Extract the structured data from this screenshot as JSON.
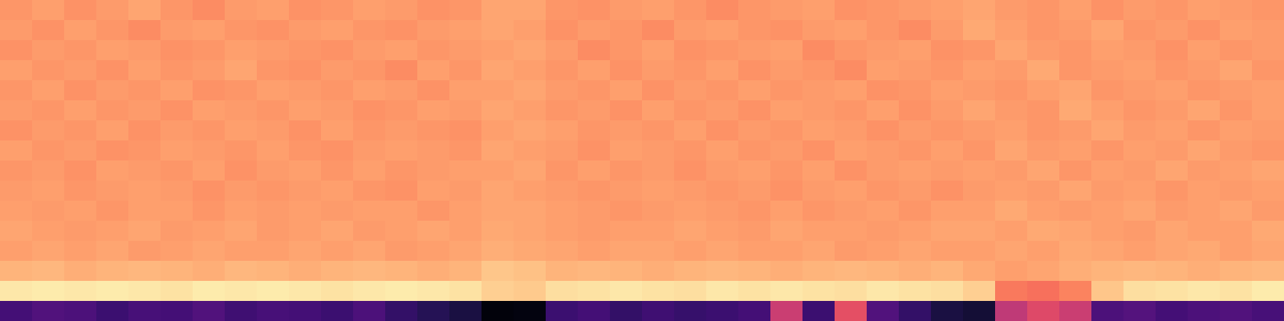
{
  "chart_data": {
    "type": "heatmap",
    "tick_labels": false,
    "color": "magma",
    "color_range": [
      0,
      1
    ],
    "cells": [
      [
        0.78,
        0.8,
        0.77,
        0.79,
        0.81,
        0.78,
        0.76,
        0.79,
        0.8,
        0.77,
        0.78,
        0.8,
        0.79,
        0.77,
        0.78,
        0.81,
        0.81,
        0.78,
        0.77,
        0.79,
        0.8,
        0.78,
        0.76,
        0.78,
        0.79,
        0.8,
        0.77,
        0.78,
        0.79,
        0.8,
        0.81,
        0.79,
        0.78,
        0.8,
        0.77,
        0.79,
        0.78,
        0.8,
        0.79,
        0.78
      ],
      [
        0.79,
        0.77,
        0.8,
        0.78,
        0.76,
        0.79,
        0.8,
        0.78,
        0.77,
        0.79,
        0.8,
        0.78,
        0.77,
        0.79,
        0.8,
        0.81,
        0.8,
        0.77,
        0.79,
        0.78,
        0.76,
        0.79,
        0.8,
        0.78,
        0.77,
        0.79,
        0.8,
        0.78,
        0.76,
        0.79,
        0.82,
        0.8,
        0.78,
        0.79,
        0.81,
        0.78,
        0.79,
        0.77,
        0.8,
        0.79
      ],
      [
        0.77,
        0.79,
        0.78,
        0.8,
        0.79,
        0.77,
        0.78,
        0.8,
        0.79,
        0.78,
        0.77,
        0.79,
        0.8,
        0.78,
        0.79,
        0.8,
        0.81,
        0.79,
        0.76,
        0.78,
        0.8,
        0.77,
        0.78,
        0.79,
        0.8,
        0.76,
        0.78,
        0.79,
        0.8,
        0.77,
        0.78,
        0.81,
        0.79,
        0.78,
        0.8,
        0.79,
        0.77,
        0.8,
        0.78,
        0.79
      ],
      [
        0.8,
        0.78,
        0.79,
        0.77,
        0.8,
        0.78,
        0.79,
        0.81,
        0.78,
        0.77,
        0.79,
        0.78,
        0.76,
        0.8,
        0.78,
        0.81,
        0.8,
        0.78,
        0.8,
        0.77,
        0.79,
        0.78,
        0.8,
        0.77,
        0.79,
        0.78,
        0.76,
        0.8,
        0.79,
        0.78,
        0.8,
        0.79,
        0.82,
        0.78,
        0.79,
        0.8,
        0.78,
        0.79,
        0.81,
        0.78
      ],
      [
        0.78,
        0.8,
        0.77,
        0.79,
        0.78,
        0.8,
        0.77,
        0.78,
        0.8,
        0.79,
        0.78,
        0.8,
        0.79,
        0.77,
        0.8,
        0.8,
        0.81,
        0.79,
        0.78,
        0.8,
        0.77,
        0.79,
        0.78,
        0.8,
        0.78,
        0.79,
        0.8,
        0.77,
        0.78,
        0.8,
        0.79,
        0.78,
        0.8,
        0.81,
        0.78,
        0.79,
        0.8,
        0.78,
        0.79,
        0.8
      ],
      [
        0.79,
        0.78,
        0.8,
        0.78,
        0.79,
        0.77,
        0.8,
        0.79,
        0.78,
        0.8,
        0.79,
        0.77,
        0.78,
        0.8,
        0.79,
        0.81,
        0.8,
        0.78,
        0.79,
        0.77,
        0.8,
        0.78,
        0.79,
        0.77,
        0.8,
        0.79,
        0.78,
        0.8,
        0.77,
        0.79,
        0.81,
        0.79,
        0.78,
        0.82,
        0.8,
        0.78,
        0.79,
        0.81,
        0.78,
        0.8
      ],
      [
        0.77,
        0.79,
        0.78,
        0.8,
        0.77,
        0.79,
        0.78,
        0.8,
        0.79,
        0.77,
        0.8,
        0.78,
        0.79,
        0.78,
        0.77,
        0.8,
        0.81,
        0.8,
        0.78,
        0.79,
        0.78,
        0.8,
        0.77,
        0.79,
        0.78,
        0.8,
        0.79,
        0.77,
        0.79,
        0.78,
        0.79,
        0.8,
        0.78,
        0.79,
        0.81,
        0.79,
        0.8,
        0.78,
        0.8,
        0.79
      ],
      [
        0.8,
        0.78,
        0.79,
        0.77,
        0.78,
        0.8,
        0.79,
        0.78,
        0.8,
        0.78,
        0.77,
        0.79,
        0.8,
        0.79,
        0.78,
        0.81,
        0.8,
        0.79,
        0.77,
        0.8,
        0.79,
        0.78,
        0.8,
        0.78,
        0.79,
        0.77,
        0.8,
        0.79,
        0.78,
        0.8,
        0.78,
        0.81,
        0.79,
        0.8,
        0.78,
        0.8,
        0.79,
        0.81,
        0.79,
        0.78
      ],
      [
        0.78,
        0.79,
        0.77,
        0.8,
        0.79,
        0.78,
        0.8,
        0.77,
        0.79,
        0.8,
        0.78,
        0.8,
        0.78,
        0.79,
        0.8,
        0.8,
        0.81,
        0.78,
        0.8,
        0.78,
        0.79,
        0.77,
        0.79,
        0.8,
        0.78,
        0.8,
        0.77,
        0.79,
        0.8,
        0.79,
        0.8,
        0.79,
        0.81,
        0.78,
        0.8,
        0.79,
        0.81,
        0.79,
        0.8,
        0.81
      ],
      [
        0.79,
        0.8,
        0.78,
        0.79,
        0.8,
        0.79,
        0.77,
        0.79,
        0.78,
        0.79,
        0.8,
        0.78,
        0.77,
        0.8,
        0.79,
        0.81,
        0.8,
        0.79,
        0.78,
        0.79,
        0.8,
        0.79,
        0.78,
        0.79,
        0.77,
        0.79,
        0.8,
        0.78,
        0.79,
        0.77,
        0.79,
        0.8,
        0.79,
        0.81,
        0.79,
        0.8,
        0.78,
        0.8,
        0.79,
        0.8
      ],
      [
        0.8,
        0.79,
        0.8,
        0.78,
        0.8,
        0.8,
        0.78,
        0.8,
        0.79,
        0.8,
        0.79,
        0.8,
        0.8,
        0.78,
        0.8,
        0.81,
        0.81,
        0.8,
        0.79,
        0.78,
        0.79,
        0.8,
        0.79,
        0.78,
        0.8,
        0.78,
        0.79,
        0.8,
        0.78,
        0.8,
        0.8,
        0.82,
        0.8,
        0.79,
        0.8,
        0.81,
        0.79,
        0.8,
        0.81,
        0.79
      ],
      [
        0.81,
        0.8,
        0.79,
        0.8,
        0.81,
        0.79,
        0.8,
        0.81,
        0.79,
        0.8,
        0.81,
        0.79,
        0.8,
        0.81,
        0.8,
        0.82,
        0.81,
        0.8,
        0.79,
        0.8,
        0.8,
        0.81,
        0.8,
        0.79,
        0.81,
        0.8,
        0.8,
        0.79,
        0.8,
        0.81,
        0.81,
        0.8,
        0.82,
        0.81,
        0.8,
        0.79,
        0.81,
        0.8,
        0.8,
        0.82
      ],
      [
        0.8,
        0.81,
        0.8,
        0.81,
        0.79,
        0.8,
        0.81,
        0.8,
        0.8,
        0.81,
        0.8,
        0.81,
        0.79,
        0.8,
        0.81,
        0.83,
        0.82,
        0.81,
        0.8,
        0.81,
        0.81,
        0.8,
        0.81,
        0.8,
        0.8,
        0.81,
        0.79,
        0.8,
        0.81,
        0.8,
        0.8,
        0.81,
        0.8,
        0.82,
        0.81,
        0.8,
        0.81,
        0.82,
        0.8,
        0.81
      ],
      [
        0.84,
        0.85,
        0.83,
        0.84,
        0.85,
        0.84,
        0.83,
        0.85,
        0.84,
        0.83,
        0.84,
        0.85,
        0.84,
        0.83,
        0.84,
        0.88,
        0.87,
        0.84,
        0.85,
        0.84,
        0.83,
        0.84,
        0.85,
        0.84,
        0.83,
        0.84,
        0.85,
        0.84,
        0.83,
        0.84,
        0.82,
        0.8,
        0.81,
        0.83,
        0.84,
        0.85,
        0.84,
        0.83,
        0.84,
        0.85
      ],
      [
        0.95,
        0.96,
        0.95,
        0.96,
        0.95,
        0.94,
        0.96,
        0.95,
        0.96,
        0.95,
        0.94,
        0.95,
        0.96,
        0.95,
        0.94,
        0.9,
        0.89,
        0.93,
        0.94,
        0.95,
        0.94,
        0.93,
        0.95,
        0.94,
        0.95,
        0.94,
        0.93,
        0.95,
        0.94,
        0.93,
        0.9,
        0.72,
        0.7,
        0.74,
        0.88,
        0.93,
        0.94,
        0.95,
        0.94,
        0.96
      ],
      [
        0.22,
        0.25,
        0.24,
        0.2,
        0.23,
        0.22,
        0.25,
        0.21,
        0.23,
        0.22,
        0.2,
        0.24,
        0.18,
        0.15,
        0.12,
        0.02,
        0.03,
        0.2,
        0.22,
        0.18,
        0.21,
        0.19,
        0.2,
        0.22,
        0.55,
        0.2,
        0.62,
        0.25,
        0.18,
        0.12,
        0.1,
        0.52,
        0.6,
        0.55,
        0.24,
        0.26,
        0.22,
        0.24,
        0.25,
        0.23
      ]
    ]
  }
}
